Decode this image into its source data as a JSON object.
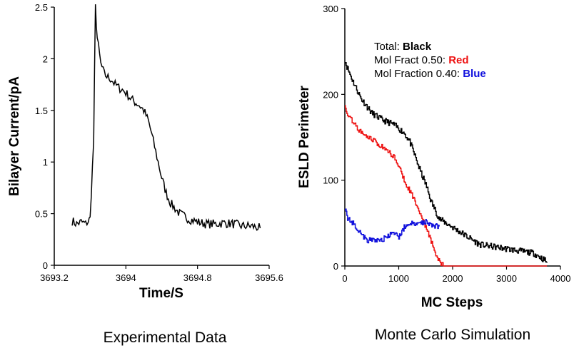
{
  "colors": {
    "axis": "#000000",
    "total": "#000000",
    "red": "#ee1111",
    "blue": "#1111dd"
  },
  "captions": {
    "left": "Experimental Data",
    "right": "Monte Carlo Simulation"
  },
  "chart_data": [
    {
      "type": "line",
      "title": "Experimental Data",
      "xlabel": "Time/S",
      "ylabel": "Bilayer Current/pA",
      "xlim": [
        3693.2,
        3695.6
      ],
      "ylim": [
        0,
        2.5
      ],
      "xticks": [
        "3693.2",
        "3694",
        "3694.8",
        "3695.6"
      ],
      "yticks": [
        "0",
        "0.5",
        "1",
        "1.5",
        "2",
        "2.5"
      ],
      "xtick_values": [
        3693.2,
        3694.0,
        3694.8,
        3695.6
      ],
      "ytick_values": [
        0,
        0.5,
        1,
        1.5,
        2,
        2.5
      ],
      "series": [
        {
          "name": "Bilayer current",
          "color": "#000000",
          "x": [
            3693.4,
            3693.45,
            3693.5,
            3693.55,
            3693.58,
            3693.6,
            3693.64,
            3693.66,
            3693.68,
            3693.72,
            3693.76,
            3693.8,
            3693.84,
            3693.88,
            3693.92,
            3693.96,
            3694.0,
            3694.05,
            3694.1,
            3694.15,
            3694.2,
            3694.25,
            3694.28,
            3694.32,
            3694.36,
            3694.4,
            3694.45,
            3694.5,
            3694.6,
            3694.7,
            3694.8,
            3694.9,
            3695.0,
            3695.1,
            3695.2,
            3695.3,
            3695.4,
            3695.5
          ],
          "y": [
            0.43,
            0.4,
            0.42,
            0.4,
            0.43,
            0.45,
            1.2,
            2.5,
            2.2,
            1.95,
            1.85,
            1.82,
            1.8,
            1.75,
            1.72,
            1.7,
            1.67,
            1.62,
            1.58,
            1.55,
            1.5,
            1.4,
            1.3,
            1.15,
            1.0,
            0.85,
            0.7,
            0.6,
            0.5,
            0.45,
            0.42,
            0.4,
            0.4,
            0.41,
            0.4,
            0.38,
            0.38,
            0.36
          ]
        }
      ]
    },
    {
      "type": "line",
      "title": "Monte Carlo Simulation",
      "xlabel": "MC Steps",
      "ylabel": "ESLD Perimeter",
      "xlim": [
        0,
        4000
      ],
      "ylim": [
        0,
        300
      ],
      "xticks": [
        "0",
        "1000",
        "2000",
        "3000",
        "4000"
      ],
      "yticks": [
        "0",
        "100",
        "200",
        "300"
      ],
      "xtick_values": [
        0,
        1000,
        2000,
        3000,
        4000
      ],
      "ytick_values": [
        0,
        100,
        200,
        300
      ],
      "legend": {
        "position": "top-right",
        "entries": [
          {
            "prefix": "Total: ",
            "key": "Black",
            "color": "#000000"
          },
          {
            "prefix": "Mol Fract 0.50: ",
            "key": "Red",
            "color": "#ee1111"
          },
          {
            "prefix": "Mol Fraction 0.40: ",
            "key": "Blue",
            "color": "#1111dd"
          }
        ]
      },
      "series": [
        {
          "name": "Total",
          "color": "#000000",
          "x": [
            0,
            50,
            150,
            300,
            500,
            700,
            900,
            1100,
            1200,
            1300,
            1400,
            1500,
            1600,
            1750,
            2000,
            2500,
            3000,
            3500,
            3750
          ],
          "y": [
            240,
            230,
            215,
            195,
            178,
            170,
            165,
            155,
            145,
            128,
            110,
            95,
            75,
            55,
            45,
            25,
            20,
            15,
            5
          ]
        },
        {
          "name": "Mol Fract 0.50",
          "color": "#ee1111",
          "x": [
            0,
            50,
            150,
            300,
            500,
            700,
            900,
            1000,
            1100,
            1200,
            1300,
            1400,
            1500,
            1600,
            1700,
            1800,
            1850,
            2500,
            3000,
            3750
          ],
          "y": [
            190,
            175,
            168,
            155,
            148,
            138,
            128,
            118,
            100,
            88,
            75,
            60,
            45,
            28,
            12,
            2,
            0,
            0,
            0,
            0
          ]
        },
        {
          "name": "Mol Fraction 0.40",
          "color": "#1111dd",
          "x": [
            0,
            50,
            150,
            250,
            350,
            400,
            500,
            600,
            700,
            800,
            900,
            1000,
            1100,
            1200,
            1300,
            1400,
            1500,
            1600,
            1750
          ],
          "y": [
            68,
            55,
            50,
            42,
            34,
            30,
            30,
            30,
            31,
            35,
            38,
            34,
            45,
            50,
            48,
            50,
            52,
            48,
            46
          ]
        }
      ]
    }
  ]
}
